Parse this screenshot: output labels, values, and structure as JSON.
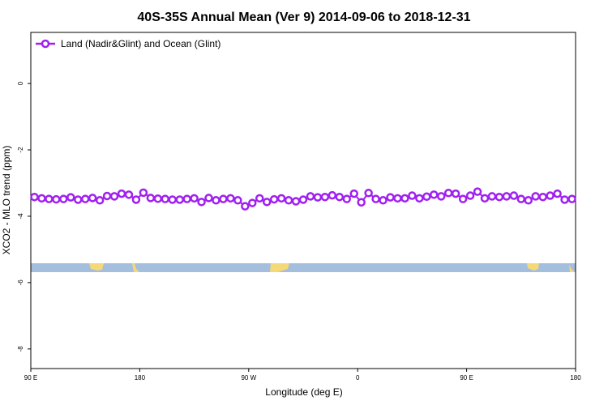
{
  "chart_data": {
    "type": "line",
    "title": "40S-35S Annual Mean (Ver 9)   2014-09-06 to 2018-12-31",
    "xlabel": "Longitude (deg E)",
    "ylabel": "XCO2 - MLO trend (ppm)",
    "x": [
      93,
      99,
      105,
      111,
      117,
      123,
      129,
      135,
      141,
      147,
      153,
      159,
      165,
      171,
      177,
      183,
      189,
      195,
      201,
      207,
      213,
      219,
      225,
      231,
      237,
      243,
      249,
      255,
      261,
      267,
      273,
      279,
      285,
      291,
      297,
      303,
      309,
      315,
      321,
      327,
      333,
      339,
      345,
      351,
      357,
      363,
      369,
      375,
      381,
      387,
      393,
      399,
      405,
      411,
      417,
      423,
      429,
      435,
      441,
      447,
      453,
      459,
      465,
      471,
      477,
      483,
      489,
      495,
      501,
      507,
      513,
      519,
      525,
      531,
      537
    ],
    "series": [
      {
        "name": "Land (Nadir&Glint) and Ocean (Glint)",
        "color": "#a020f0",
        "values": [
          -3.42,
          -3.46,
          -3.48,
          -3.49,
          -3.48,
          -3.43,
          -3.5,
          -3.48,
          -3.45,
          -3.52,
          -3.39,
          -3.4,
          -3.32,
          -3.35,
          -3.5,
          -3.29,
          -3.45,
          -3.47,
          -3.48,
          -3.5,
          -3.5,
          -3.48,
          -3.46,
          -3.57,
          -3.45,
          -3.52,
          -3.48,
          -3.46,
          -3.52,
          -3.7,
          -3.6,
          -3.46,
          -3.57,
          -3.49,
          -3.46,
          -3.52,
          -3.55,
          -3.5,
          -3.4,
          -3.43,
          -3.42,
          -3.37,
          -3.42,
          -3.48,
          -3.32,
          -3.58,
          -3.3,
          -3.48,
          -3.52,
          -3.43,
          -3.46,
          -3.46,
          -3.38,
          -3.46,
          -3.41,
          -3.35,
          -3.4,
          -3.3,
          -3.32,
          -3.48,
          -3.38,
          -3.26,
          -3.46,
          -3.4,
          -3.42,
          -3.4,
          -3.38,
          -3.48,
          -3.52,
          -3.4,
          -3.42,
          -3.38,
          -3.32,
          -3.5,
          -3.48
        ]
      }
    ],
    "xlim": [
      90,
      540
    ],
    "xticks": [
      {
        "value": 90,
        "label": "90 E"
      },
      180,
      {
        "value": 270,
        "label": "90 W"
      },
      {
        "value": 360,
        "label": "0"
      },
      {
        "value": 450,
        "label": "90 E"
      },
      {
        "value": 540,
        "label": "180"
      }
    ],
    "ylim": [
      -8.59,
      1.54
    ],
    "yticks": [
      0,
      -2,
      -4,
      -6,
      -8
    ],
    "legend": "top-left"
  }
}
